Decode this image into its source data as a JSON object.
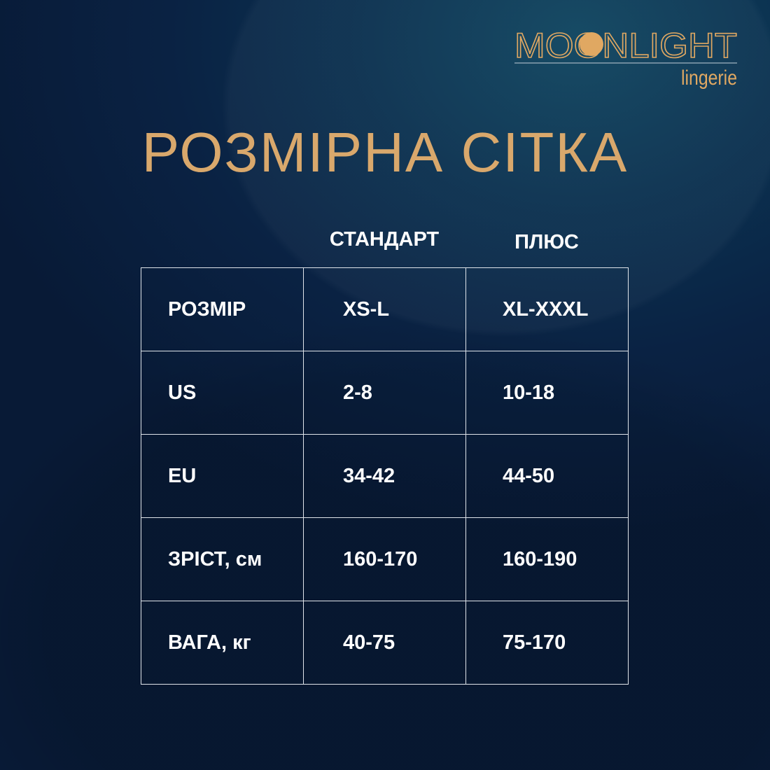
{
  "logo": {
    "brand": "MOONLIGHT",
    "sub": "lingerie",
    "color": "#e0a862"
  },
  "title": "РОЗМІРНА СІТКА",
  "columns": [
    "СТАНДАРТ",
    "ПЛЮС"
  ],
  "rows": [
    {
      "label": "РОЗМІР",
      "standard": "XS-L",
      "plus": "XL-XXXL"
    },
    {
      "label": "US",
      "standard": "2-8",
      "plus": "10-18"
    },
    {
      "label": "EU",
      "standard": "34-42",
      "plus": "44-50"
    },
    {
      "label": "ЗРІСТ, см",
      "standard": "160-170",
      "plus": "160-190"
    },
    {
      "label": "ВАГА, кг",
      "standard": "40-75",
      "plus": "75-170"
    }
  ],
  "colors": {
    "accent": "#d9a86c",
    "background": "#0a2243",
    "grid": "#dfe4ea"
  }
}
